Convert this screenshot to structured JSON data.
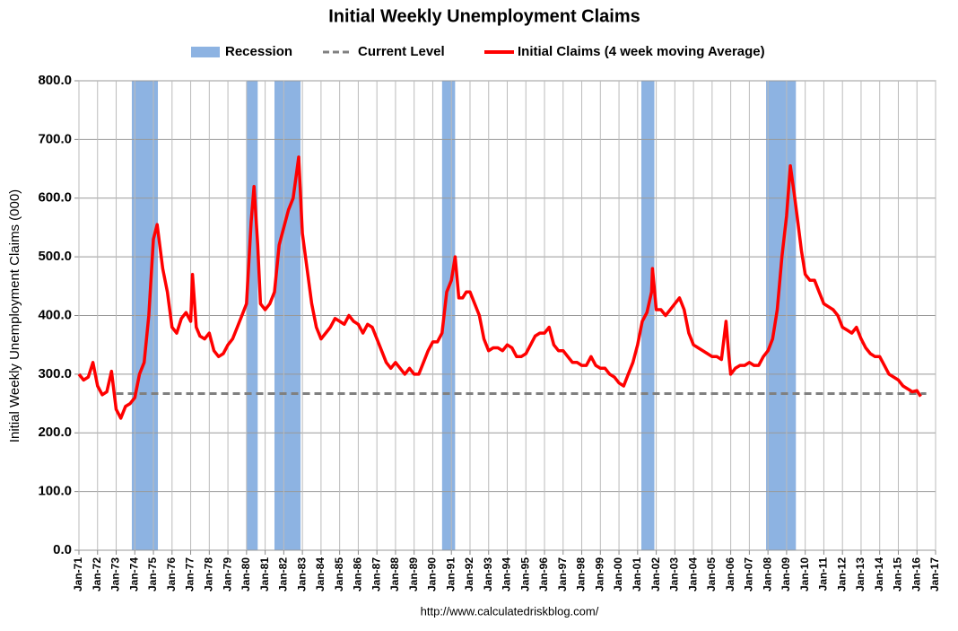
{
  "chart_data": {
    "type": "line",
    "title": "Initial Weekly Unemployment Claims",
    "y_label": "Initial Weekly Unemployment Claims (000)",
    "source": "http://www.calculatedriskblog.com/",
    "ylim": [
      0,
      800
    ],
    "yticks": [
      {
        "value": 0,
        "label": "0.0"
      },
      {
        "value": 100,
        "label": "100.0"
      },
      {
        "value": 200,
        "label": "200.0"
      },
      {
        "value": 300,
        "label": "300.0"
      },
      {
        "value": 400,
        "label": "400.0"
      },
      {
        "value": 500,
        "label": "500.0"
      },
      {
        "value": 600,
        "label": "600.0"
      },
      {
        "value": 700,
        "label": "700.0"
      },
      {
        "value": 800,
        "label": "800.0"
      }
    ],
    "xlim": [
      1971,
      2017
    ],
    "xticks": [
      {
        "value": 1971,
        "label": "Jan-71"
      },
      {
        "value": 1972,
        "label": "Jan-72"
      },
      {
        "value": 1973,
        "label": "Jan-73"
      },
      {
        "value": 1974,
        "label": "Jan-74"
      },
      {
        "value": 1975,
        "label": "Jan-75"
      },
      {
        "value": 1976,
        "label": "Jan-76"
      },
      {
        "value": 1977,
        "label": "Jan-77"
      },
      {
        "value": 1978,
        "label": "Jan-78"
      },
      {
        "value": 1979,
        "label": "Jan-79"
      },
      {
        "value": 1980,
        "label": "Jan-80"
      },
      {
        "value": 1981,
        "label": "Jan-81"
      },
      {
        "value": 1982,
        "label": "Jan-82"
      },
      {
        "value": 1983,
        "label": "Jan-83"
      },
      {
        "value": 1984,
        "label": "Jan-84"
      },
      {
        "value": 1985,
        "label": "Jan-85"
      },
      {
        "value": 1986,
        "label": "Jan-86"
      },
      {
        "value": 1987,
        "label": "Jan-87"
      },
      {
        "value": 1988,
        "label": "Jan-88"
      },
      {
        "value": 1989,
        "label": "Jan-89"
      },
      {
        "value": 1990,
        "label": "Jan-90"
      },
      {
        "value": 1991,
        "label": "Jan-91"
      },
      {
        "value": 1992,
        "label": "Jan-92"
      },
      {
        "value": 1993,
        "label": "Jan-93"
      },
      {
        "value": 1994,
        "label": "Jan-94"
      },
      {
        "value": 1995,
        "label": "Jan-95"
      },
      {
        "value": 1996,
        "label": "Jan-96"
      },
      {
        "value": 1997,
        "label": "Jan-97"
      },
      {
        "value": 1998,
        "label": "Jan-98"
      },
      {
        "value": 1999,
        "label": "Jan-99"
      },
      {
        "value": 2000,
        "label": "Jan-00"
      },
      {
        "value": 2001,
        "label": "Jan-01"
      },
      {
        "value": 2002,
        "label": "Jan-02"
      },
      {
        "value": 2003,
        "label": "Jan-03"
      },
      {
        "value": 2004,
        "label": "Jan-04"
      },
      {
        "value": 2005,
        "label": "Jan-05"
      },
      {
        "value": 2006,
        "label": "Jan-06"
      },
      {
        "value": 2007,
        "label": "Jan-07"
      },
      {
        "value": 2008,
        "label": "Jan-08"
      },
      {
        "value": 2009,
        "label": "Jan-09"
      },
      {
        "value": 2010,
        "label": "Jan-10"
      },
      {
        "value": 2011,
        "label": "Jan-11"
      },
      {
        "value": 2012,
        "label": "Jan-12"
      },
      {
        "value": 2013,
        "label": "Jan-13"
      },
      {
        "value": 2014,
        "label": "Jan-14"
      },
      {
        "value": 2015,
        "label": "Jan-15"
      },
      {
        "value": 2016,
        "label": "Jan-16"
      },
      {
        "value": 2017,
        "label": "Jan-17"
      }
    ],
    "grid": true,
    "recessions": {
      "name": "Recession",
      "color": "#8db3e2",
      "periods": [
        [
          1973.84,
          1975.24
        ],
        [
          1980.0,
          1980.6
        ],
        [
          1981.5,
          1982.9
        ],
        [
          1990.5,
          1991.2
        ],
        [
          2001.2,
          2001.9
        ],
        [
          2007.9,
          2009.5
        ]
      ]
    },
    "current_level": {
      "name": "Current Level",
      "color": "#808080",
      "value": 267,
      "x": [
        1973,
        2016.5
      ]
    },
    "series": [
      {
        "name": "Initial Claims (4 week moving Average)",
        "color": "#ff0000",
        "x": [
          1971,
          1971.25,
          1971.5,
          1971.75,
          1972,
          1972.25,
          1972.5,
          1972.75,
          1973,
          1973.25,
          1973.5,
          1973.75,
          1974,
          1974.25,
          1974.5,
          1974.75,
          1975,
          1975.2,
          1975.5,
          1975.75,
          1976,
          1976.25,
          1976.5,
          1976.75,
          1977,
          1977.1,
          1977.3,
          1977.5,
          1977.75,
          1978,
          1978.25,
          1978.5,
          1978.75,
          1979,
          1979.25,
          1979.5,
          1979.75,
          1980,
          1980.25,
          1980.4,
          1980.6,
          1980.75,
          1981,
          1981.25,
          1981.5,
          1981.75,
          1982,
          1982.25,
          1982.5,
          1982.8,
          1983,
          1983.25,
          1983.5,
          1983.75,
          1984,
          1984.25,
          1984.5,
          1984.75,
          1985,
          1985.25,
          1985.5,
          1985.75,
          1986,
          1986.25,
          1986.5,
          1986.75,
          1987,
          1987.25,
          1987.5,
          1987.75,
          1988,
          1988.25,
          1988.5,
          1988.75,
          1989,
          1989.25,
          1989.5,
          1989.75,
          1990,
          1990.25,
          1990.5,
          1990.75,
          1991,
          1991.2,
          1991.4,
          1991.6,
          1991.8,
          1992,
          1992.25,
          1992.5,
          1992.75,
          1993,
          1993.25,
          1993.5,
          1993.75,
          1994,
          1994.25,
          1994.5,
          1994.75,
          1995,
          1995.25,
          1995.5,
          1995.75,
          1996,
          1996.25,
          1996.5,
          1996.75,
          1997,
          1997.25,
          1997.5,
          1997.75,
          1998,
          1998.25,
          1998.5,
          1998.75,
          1999,
          1999.25,
          1999.5,
          1999.75,
          2000,
          2000.25,
          2000.5,
          2000.75,
          2001,
          2001.25,
          2001.5,
          2001.75,
          2001.8,
          2002,
          2002.25,
          2002.5,
          2002.75,
          2003,
          2003.25,
          2003.5,
          2003.75,
          2004,
          2004.25,
          2004.5,
          2004.75,
          2005,
          2005.25,
          2005.5,
          2005.75,
          2005.9,
          2006,
          2006.25,
          2006.5,
          2006.75,
          2007,
          2007.25,
          2007.5,
          2007.75,
          2008,
          2008.25,
          2008.5,
          2008.75,
          2009,
          2009.2,
          2009.4,
          2009.6,
          2009.8,
          2010,
          2010.25,
          2010.5,
          2010.75,
          2011,
          2011.25,
          2011.5,
          2011.75,
          2012,
          2012.25,
          2012.5,
          2012.75,
          2013,
          2013.25,
          2013.5,
          2013.75,
          2014,
          2014.25,
          2014.5,
          2014.75,
          2015,
          2015.25,
          2015.5,
          2015.75,
          2016,
          2016.2
        ],
        "values": [
          300,
          290,
          295,
          320,
          280,
          265,
          270,
          305,
          240,
          225,
          245,
          250,
          260,
          300,
          320,
          400,
          530,
          555,
          480,
          440,
          380,
          370,
          395,
          405,
          390,
          470,
          380,
          365,
          360,
          370,
          340,
          330,
          335,
          350,
          360,
          380,
          400,
          420,
          560,
          620,
          520,
          420,
          410,
          420,
          440,
          520,
          550,
          580,
          600,
          670,
          540,
          480,
          420,
          380,
          360,
          370,
          380,
          395,
          390,
          385,
          400,
          390,
          385,
          370,
          385,
          380,
          360,
          340,
          320,
          310,
          320,
          310,
          300,
          310,
          300,
          300,
          320,
          340,
          355,
          355,
          370,
          440,
          460,
          500,
          430,
          430,
          440,
          440,
          420,
          400,
          360,
          340,
          345,
          345,
          340,
          350,
          345,
          330,
          330,
          335,
          350,
          365,
          370,
          370,
          380,
          350,
          340,
          340,
          330,
          320,
          320,
          315,
          315,
          330,
          315,
          310,
          310,
          300,
          295,
          285,
          280,
          300,
          320,
          350,
          390,
          405,
          440,
          480,
          410,
          410,
          400,
          410,
          420,
          430,
          410,
          370,
          350,
          345,
          340,
          335,
          330,
          330,
          325,
          390,
          330,
          300,
          310,
          315,
          315,
          320,
          315,
          315,
          330,
          340,
          360,
          410,
          500,
          570,
          655,
          610,
          560,
          510,
          470,
          460,
          460,
          440,
          420,
          415,
          410,
          400,
          380,
          375,
          370,
          380,
          360,
          345,
          335,
          330,
          330,
          315,
          300,
          295,
          290,
          280,
          275,
          270,
          272,
          262
        ]
      }
    ]
  }
}
